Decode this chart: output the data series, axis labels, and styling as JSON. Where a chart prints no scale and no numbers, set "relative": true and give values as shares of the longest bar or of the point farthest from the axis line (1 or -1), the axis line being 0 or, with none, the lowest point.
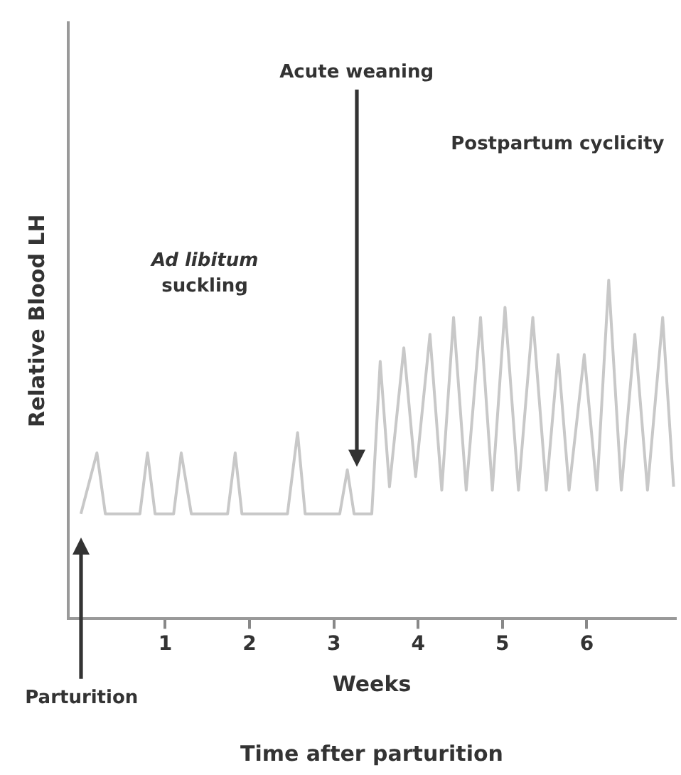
{
  "chart_data": {
    "type": "line",
    "xlabel": "Weeks",
    "ylabel": "Relative Blood LH",
    "relative": true,
    "marker": "none",
    "line_style": "solid",
    "color": "#c8c8c8",
    "xlim": [
      -0.15,
      7.05
    ],
    "xticks": [
      1,
      2,
      3,
      4,
      5,
      6
    ],
    "x": [
      0,
      0.19,
      0.29,
      0.7,
      0.79,
      0.88,
      1.1,
      1.19,
      1.31,
      1.74,
      1.83,
      1.91,
      2.45,
      2.57,
      2.66,
      3.07,
      3.16,
      3.24,
      3.45,
      3.55,
      3.66,
      3.83,
      3.97,
      4.14,
      4.28,
      4.42,
      4.57,
      4.74,
      4.88,
      5.03,
      5.19,
      5.36,
      5.52,
      5.66,
      5.79,
      5.97,
      6.12,
      6.26,
      6.41,
      6.57,
      6.72,
      6.9,
      7.03
    ],
    "values": [
      0.31,
      0.49,
      0.31,
      0.31,
      0.49,
      0.31,
      0.31,
      0.49,
      0.31,
      0.31,
      0.49,
      0.31,
      0.31,
      0.55,
      0.31,
      0.31,
      0.44,
      0.31,
      0.31,
      0.76,
      0.39,
      0.8,
      0.42,
      0.84,
      0.38,
      0.89,
      0.38,
      0.89,
      0.38,
      0.92,
      0.38,
      0.89,
      0.38,
      0.78,
      0.38,
      0.78,
      0.38,
      1,
      0.38,
      0.84,
      0.38,
      0.89,
      0.39
    ],
    "annotations": [
      "Ad libitum suckling",
      "Postpartum cyclicity",
      "Acute weaning",
      "Parturition",
      "Time after parturition"
    ]
  }
}
